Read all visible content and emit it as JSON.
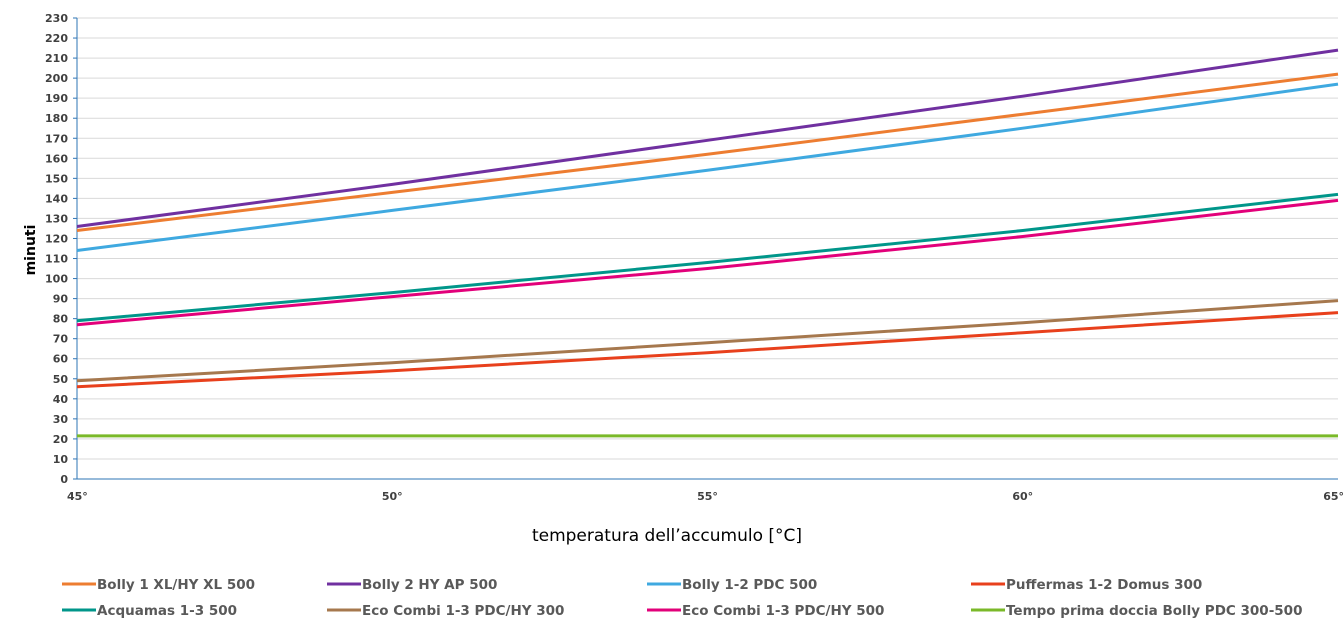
{
  "chart_data": {
    "type": "line",
    "x": [
      "45°",
      "50°",
      "55°",
      "60°",
      "65°"
    ],
    "xlabel": "temperatura dell’accumulo [°C]",
    "ylabel": "minuti",
    "ylim": [
      0,
      230
    ],
    "yticks": [
      0,
      10,
      20,
      30,
      40,
      50,
      60,
      70,
      80,
      90,
      100,
      110,
      120,
      130,
      140,
      150,
      160,
      170,
      180,
      190,
      200,
      210,
      220,
      230
    ],
    "grid": true,
    "legend_position": "bottom",
    "series": [
      {
        "name": "Bolly 1 XL/HY XL 500",
        "color": "#ed7d31",
        "values": [
          124,
          143,
          162,
          182,
          202
        ]
      },
      {
        "name": "Bolly 2 HY AP 500",
        "color": "#7030a0",
        "values": [
          126,
          147,
          169,
          191,
          214
        ]
      },
      {
        "name": "Bolly 1-2 PDC 500",
        "color": "#3fa9e0",
        "values": [
          114,
          134,
          154,
          175,
          197
        ]
      },
      {
        "name": "Puffermas 1-2 Domus 300",
        "color": "#e8401c",
        "values": [
          46,
          54,
          63,
          73,
          83
        ]
      },
      {
        "name": "Acquamas 1-3  500",
        "color": "#00968a",
        "values": [
          79,
          93,
          108,
          124,
          142
        ]
      },
      {
        "name": "Eco Combi 1-3 PDC/HY 300",
        "color": "#a6784e",
        "values": [
          49,
          58,
          68,
          78,
          89
        ]
      },
      {
        "name": "Eco Combi 1-3 PDC/HY 500",
        "color": "#e2007a",
        "values": [
          77,
          91,
          105,
          121,
          139
        ]
      },
      {
        "name": "Tempo prima doccia Bolly PDC 300-500",
        "color": "#7ab929",
        "values": [
          21.5,
          21.5,
          21.5,
          21.5,
          21.5
        ]
      }
    ]
  }
}
